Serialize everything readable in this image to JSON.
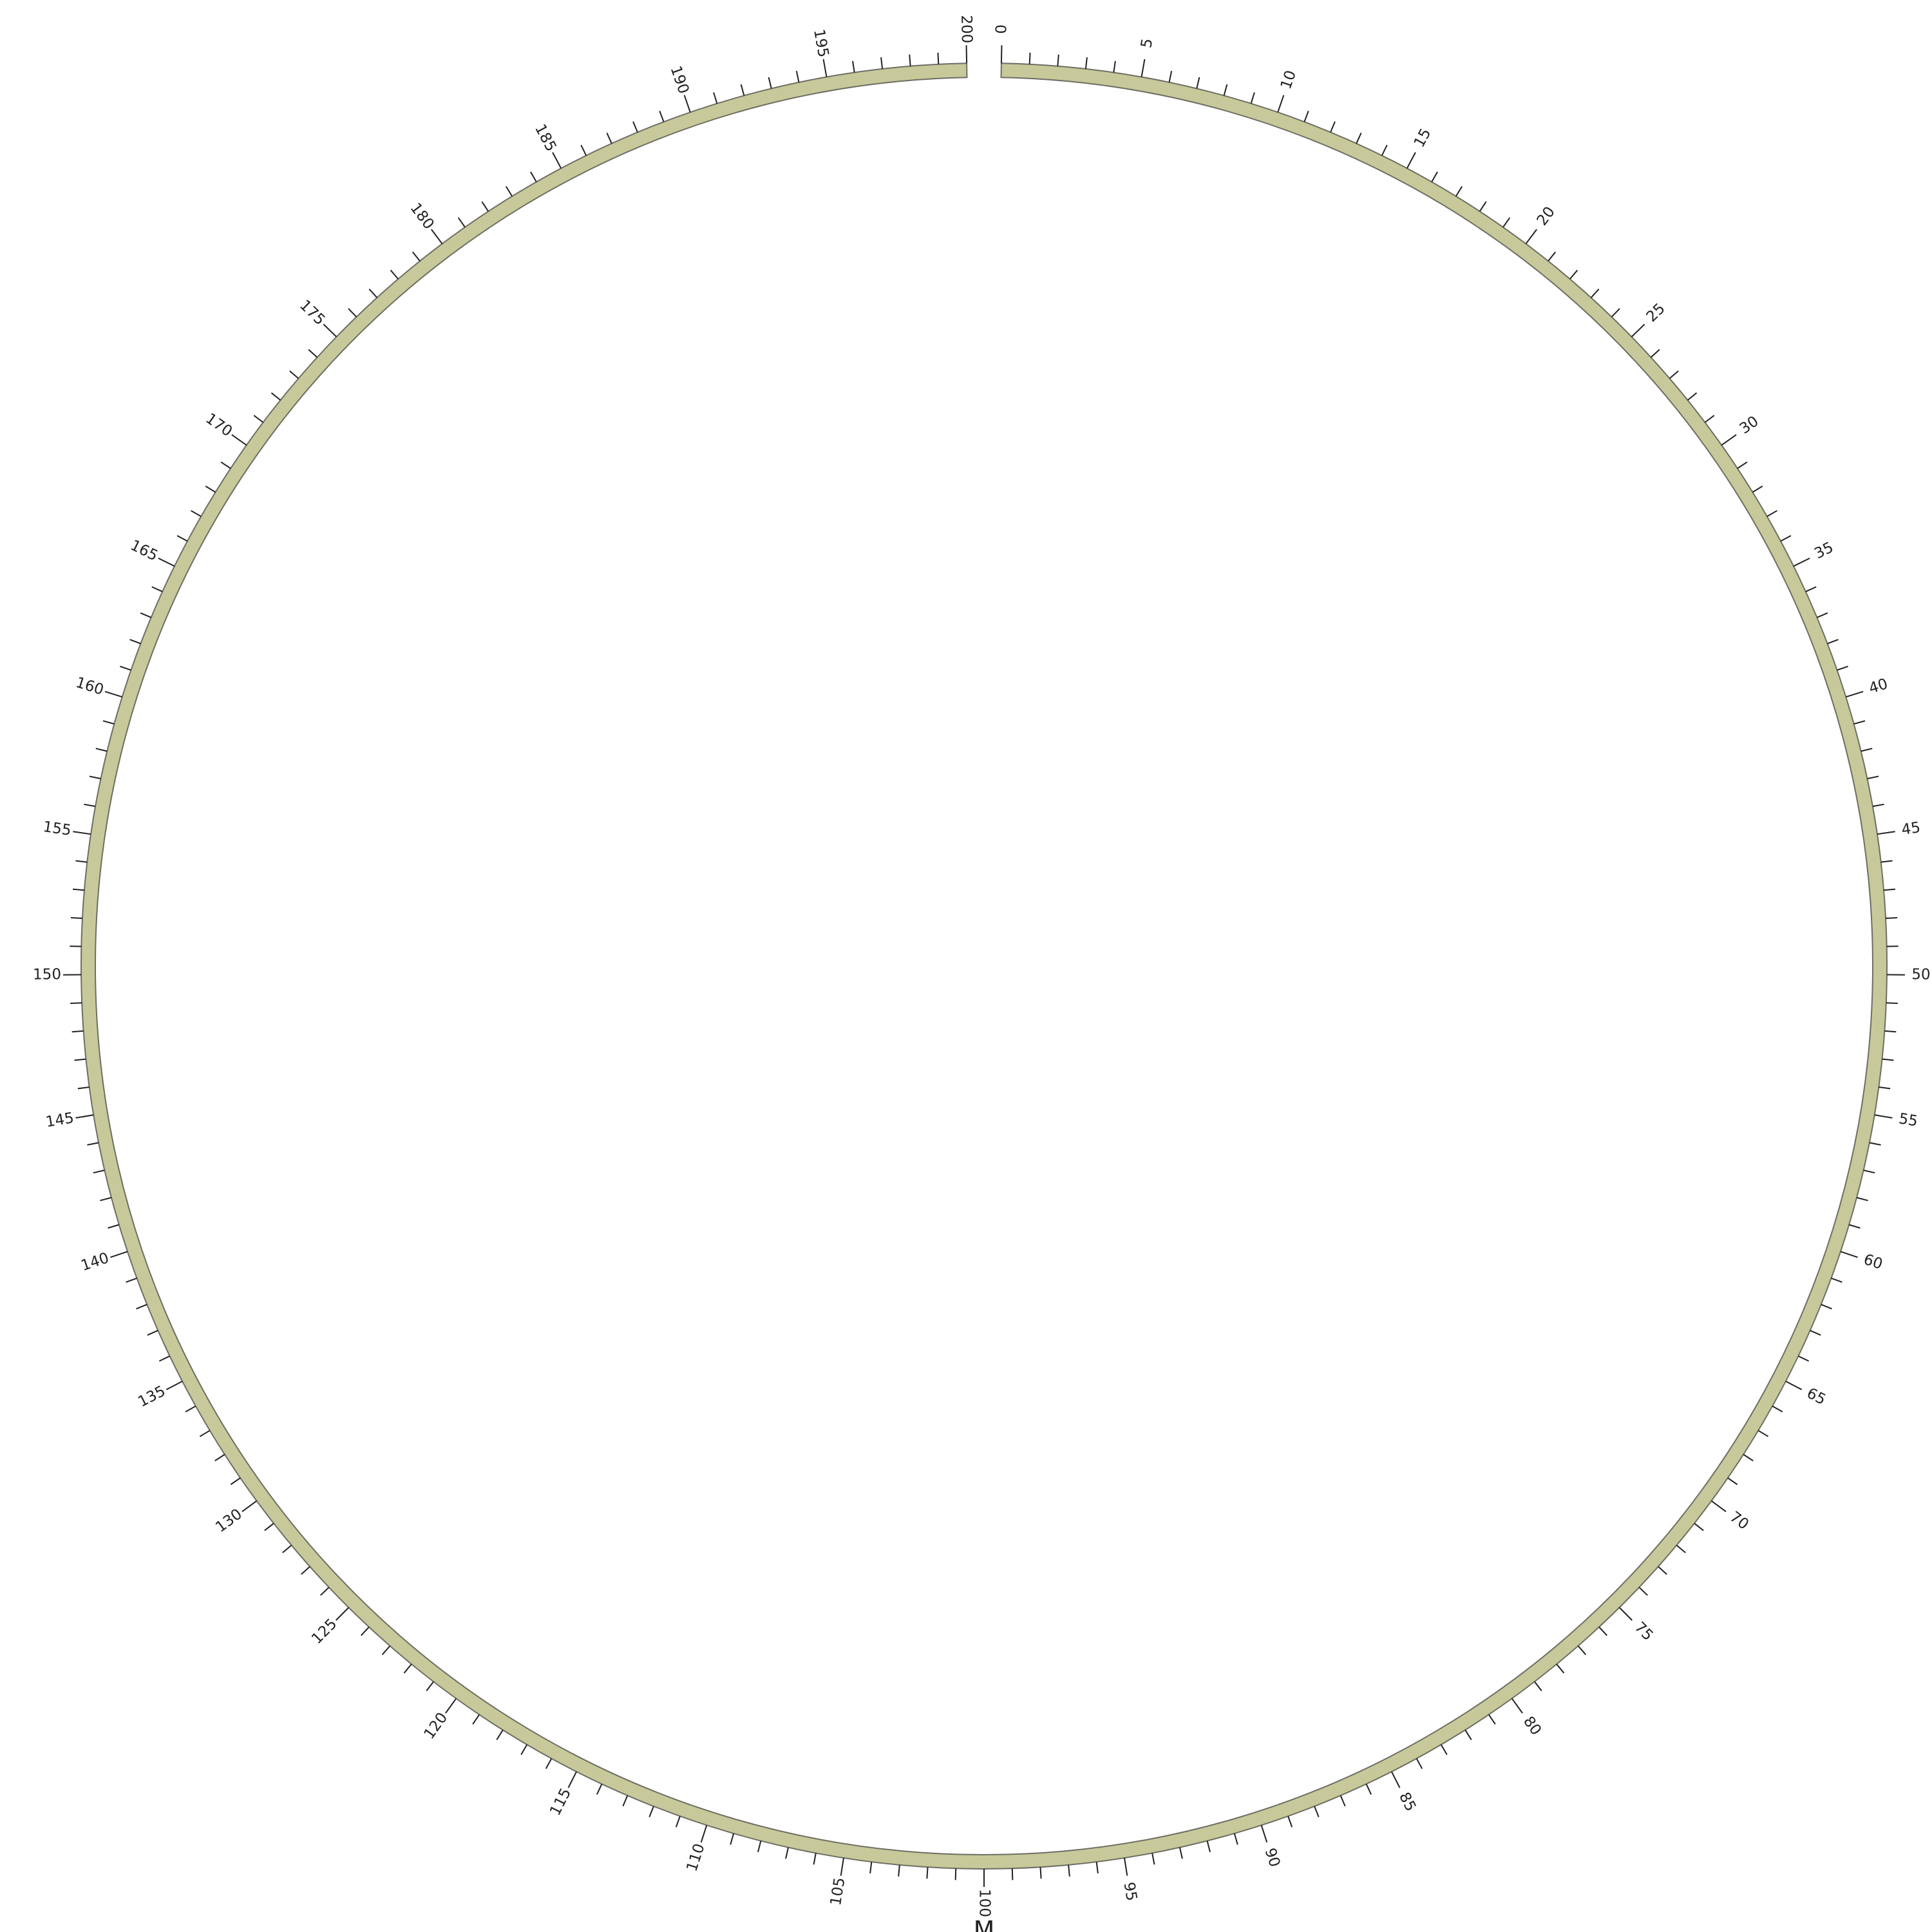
{
  "chart_data": {
    "type": "circular-ideogram",
    "chromosome": {
      "name": "M",
      "start": 0,
      "end": 200,
      "color": "#c7c99a",
      "outline": "#6e6e64"
    },
    "ticks": {
      "minor_step": 1,
      "major_step": 5,
      "labels": [
        "0",
        "5",
        "10",
        "15",
        "20",
        "25",
        "30",
        "35",
        "40",
        "45",
        "50",
        "55",
        "60",
        "65",
        "70",
        "75",
        "80",
        "85",
        "90",
        "95",
        "100",
        "105",
        "110",
        "115",
        "120",
        "125",
        "130",
        "135",
        "140",
        "145",
        "150",
        "155",
        "160",
        "165",
        "170",
        "175",
        "180",
        "185",
        "190",
        "195",
        "200"
      ]
    }
  }
}
